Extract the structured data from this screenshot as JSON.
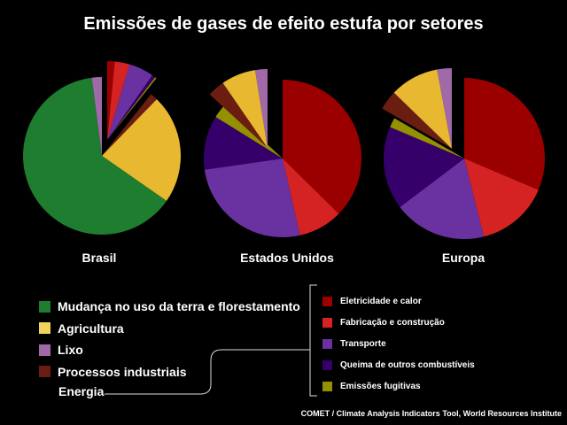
{
  "colors": {
    "land_use": "#1f7d2f",
    "agriculture": "#e8b830",
    "waste": "#a06aa8",
    "industrial": "#6a1d10",
    "electricity": "#9a0000",
    "manufacturing": "#d52222",
    "transport": "#6a32a0",
    "other_fuel": "#35006a",
    "fugitive": "#959000",
    "agriculture_swatch": "#f2d25a"
  },
  "legend": {
    "left_items": [
      {
        "label": "Mudança no uso da terra e florestamento",
        "color": "#1f7d2f"
      },
      {
        "label": "Agricultura",
        "color": "#f2d25a"
      },
      {
        "label": "Lixo",
        "color": "#a06aa8"
      },
      {
        "label": "Processos industriais",
        "color": "#6a1d10"
      }
    ],
    "energia_label": "Energia",
    "energy_items": [
      {
        "label": "Eletricidade e calor",
        "color": "#9a0000"
      },
      {
        "label": "Fabricação e construção",
        "color": "#d52222"
      },
      {
        "label": "Transporte",
        "color": "#6a32a0"
      },
      {
        "label": "Queima de outros combustíveis",
        "color": "#35006a"
      },
      {
        "label": "Emissões fugitivas",
        "color": "#959000"
      }
    ]
  },
  "chart_data": {
    "type": "pie",
    "title": "Emissões de gases de efeito estufa por setores",
    "source": "COMET / Climate Analysis Indicators Tool, World Resources Institute",
    "pies": [
      {
        "name": "Brasil",
        "slices": [
          {
            "sector": "Eletricidade e calor",
            "value": 1.5,
            "exploded": true
          },
          {
            "sector": "Fabricação e construção",
            "value": 3,
            "exploded": true
          },
          {
            "sector": "Transporte",
            "value": 5,
            "exploded": true
          },
          {
            "sector": "Queima de outros combustíveis",
            "value": 0.7,
            "exploded": true
          },
          {
            "sector": "Emissões fugitivas",
            "value": 0.3,
            "exploded": true
          },
          {
            "sector": "Processos industriais",
            "value": 1.5,
            "exploded": false
          },
          {
            "sector": "Agricultura",
            "value": 22,
            "exploded": false
          },
          {
            "sector": "Mudança no uso da terra e florestamento",
            "value": 62,
            "exploded": false
          },
          {
            "sector": "Lixo",
            "value": 2,
            "exploded": false
          }
        ]
      },
      {
        "name": "Estados Unidos",
        "slices": [
          {
            "sector": "Eletricidade e calor",
            "value": 37,
            "exploded": false
          },
          {
            "sector": "Fabricação e construção",
            "value": 9,
            "exploded": false
          },
          {
            "sector": "Transporte",
            "value": 26,
            "exploded": false
          },
          {
            "sector": "Queima de outros combustíveis",
            "value": 11,
            "exploded": false
          },
          {
            "sector": "Emissões fugitivas",
            "value": 3,
            "exploded": false
          },
          {
            "sector": "Processos industriais",
            "value": 3.5,
            "exploded": true
          },
          {
            "sector": "Agricultura",
            "value": 7,
            "exploded": true
          },
          {
            "sector": "Lixo",
            "value": 2.5,
            "exploded": true
          }
        ]
      },
      {
        "name": "Europa",
        "slices": [
          {
            "sector": "Eletricidade e calor",
            "value": 32,
            "exploded": false
          },
          {
            "sector": "Fabricação e construção",
            "value": 15,
            "exploded": false
          },
          {
            "sector": "Transporte",
            "value": 19,
            "exploded": false
          },
          {
            "sector": "Queima de outros combustíveis",
            "value": 17,
            "exploded": false
          },
          {
            "sector": "Emissões fugitivas",
            "value": 2,
            "exploded": false
          },
          {
            "sector": "Processos industriais",
            "value": 4,
            "exploded": true
          },
          {
            "sector": "Agricultura",
            "value": 10,
            "exploded": true
          },
          {
            "sector": "Lixo",
            "value": 3,
            "exploded": true
          }
        ]
      }
    ]
  }
}
